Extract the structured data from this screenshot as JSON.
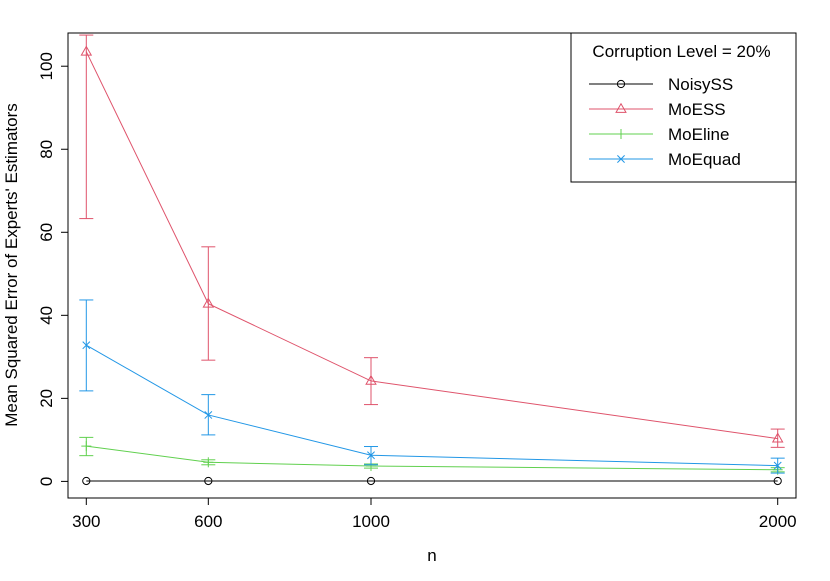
{
  "chart_data": {
    "type": "line",
    "title": "",
    "xlabel": "n",
    "ylabel": "Mean Squared Error of Experts' Estimators",
    "x": [
      300,
      600,
      1000,
      2000
    ],
    "x_ticks": [
      "300",
      "600",
      "1000",
      "2000"
    ],
    "y_ticks": [
      "0",
      "20",
      "40",
      "60",
      "80",
      "100"
    ],
    "xlim": [
      255,
      2045
    ],
    "ylim": [
      -4,
      108
    ],
    "grid": false,
    "legend": {
      "title": "Corruption Level = 20%",
      "placement": "top-right"
    },
    "series": [
      {
        "name": "NoisySS",
        "color": "#000000",
        "marker": "circle",
        "values": [
          0.1,
          0.1,
          0.1,
          0.1
        ],
        "err_low": [
          0.1,
          0.1,
          0.1,
          0.1
        ],
        "err_high": [
          0.1,
          0.1,
          0.1,
          0.1
        ]
      },
      {
        "name": "MoESS",
        "color": "#DF536B",
        "marker": "triangle",
        "values": [
          103.5,
          42.8,
          24.2,
          10.3
        ],
        "err_low": [
          63.3,
          29.2,
          18.5,
          8.2
        ],
        "err_high": [
          107.5,
          56.5,
          29.8,
          12.6
        ]
      },
      {
        "name": "MoEline",
        "color": "#61D04F",
        "marker": "plus",
        "values": [
          8.5,
          4.6,
          3.7,
          2.8
        ],
        "err_low": [
          6.2,
          4.0,
          3.2,
          2.3
        ],
        "err_high": [
          10.6,
          5.2,
          4.2,
          3.3
        ]
      },
      {
        "name": "MoEquad",
        "color": "#2297E6",
        "marker": "x",
        "values": [
          32.8,
          16.0,
          6.3,
          3.8
        ],
        "err_low": [
          21.8,
          11.2,
          4.0,
          2.0
        ],
        "err_high": [
          43.7,
          20.9,
          8.4,
          5.6
        ]
      }
    ]
  }
}
